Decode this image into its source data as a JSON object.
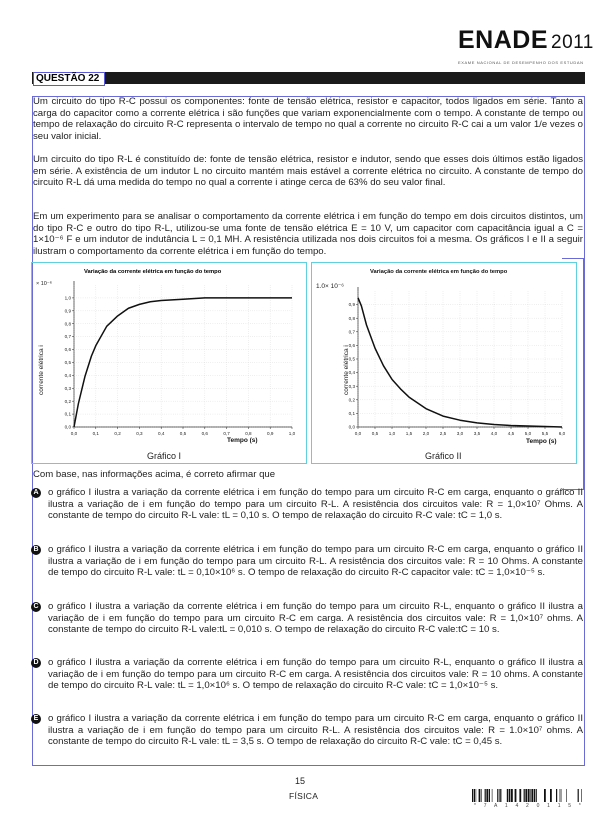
{
  "header": {
    "logo": "ENADE",
    "year": "2011",
    "tagline": "EXAME NACIONAL DE DESEMPENHO DOS ESTUDANTES"
  },
  "question": {
    "label": "QUESTÃO 22"
  },
  "paragraphs": [
    "Um circuito do tipo R-C possui os componentes: fonte de tensão elétrica, resistor e capacitor, todos ligados em série. Tanto a carga do capacitor como a corrente elétrica i são funções que variam exponencialmente com o tempo. A constante de tempo ou tempo de relaxação do circuito R-C representa o intervalo de tempo no qual a corrente no circuito R-C cai a um valor 1/e vezes o seu valor inicial.",
    "Um circuito do tipo R-L é constituído de: fonte de tensão elétrica, resistor e indutor, sendo que esses dois últimos estão ligados em série. A existência de um indutor L no circuito mantém mais estável a corrente elétrica no circuito. A constante de tempo do circuito R-L dá uma medida do tempo no qual a corrente i atinge cerca de 63% do seu valor final.",
    "Em um experimento para se analisar o comportamento da corrente elétrica i em função do tempo em dois circuitos distintos, um do tipo R-C e outro do tipo R-L, utilizou-se uma fonte de tensão elétrica E = 10 V, um capacitor com capacitância igual a C = 1×10⁻⁶ F e um indutor de indutância L = 0,1 MH. A resistência utilizada nos dois circuitos foi a mesma. Os gráficos I e II a seguir ilustram o comportamento da corrente elétrica i em função do tempo."
  ],
  "prompt": "Com base, nas informações acima, é correto afirmar que",
  "options": [
    {
      "letter": "A",
      "text": "o gráfico I ilustra a variação da corrente elétrica i em função do tempo para um circuito R-C em carga, enquanto o gráfico II ilustra a variação de i em função do tempo para um circuito R-L. A resistência dos circuitos vale: R = 1,0×10⁷ Ohms. A constante de tempo do circuito R-L vale: tL = 0,10 s. O tempo de relaxação do circuito R-C vale: tC = 1,0 s."
    },
    {
      "letter": "B",
      "text": "o gráfico I ilustra a variação da corrente elétrica i em função do tempo para um circuito R-C em carga, enquanto o gráfico II ilustra a variação de i em função do tempo para um circuito R-L. A resistência dos circuitos vale: R = 10 Ohms. A constante de tempo do circuito R-L vale: tL = 0,10×10⁶ s. O tempo de relaxação do circuito R-C capacitor vale: tC = 1,0×10⁻⁵ s."
    },
    {
      "letter": "C",
      "text": "o gráfico I ilustra a variação da corrente elétrica i em função do tempo para um circuito R-L, enquanto o gráfico II ilustra a variação de i em função do tempo para um circuito R-C em carga. A resistência dos circuitos vale: R = 1,0×10⁷ ohms. A constante de tempo do circuito R-L vale:tL = 0,010 s. O tempo de relaxação do circuito R-C vale:tC = 10 s."
    },
    {
      "letter": "D",
      "text": "o gráfico I ilustra a variação da corrente elétrica i em função do tempo para um circuito R-L, enquanto o gráfico II ilustra a variação de i em função do tempo para um circuito R-C em carga. A resistência dos circuitos vale: R = 10 ohms. A constante de tempo do circuito R-L vale: tL = 1,0×10⁶ s. O tempo de relaxação do circuito R-C vale: tC = 1,0×10⁻⁵ s."
    },
    {
      "letter": "E",
      "text": "o gráfico I ilustra a variação da corrente elétrica i em função do tempo para um circuito R-C em carga, enquanto o gráfico II ilustra a variação de i em função do tempo para um circuito R-L. A resistência dos circuitos vale: R = 1.0×10⁷ ohms. A constante de tempo do circuito R-L vale: tL = 3,5 s. O tempo de relaxação do circuito R-C vale: tC = 0,45 s."
    }
  ],
  "graphs": {
    "g1_title": "Variação da corrente elétrica em função do tempo",
    "g1_scale": "× 10⁻⁶",
    "g1_ylabel": "corrente elétrica i",
    "g1_xlabel": "Tempo (s)",
    "g1_caption": "Gráfico I",
    "g2_title": "Variação da corrente elétrica em função do tempo",
    "g2_scale": "1.0× 10⁻⁶",
    "g2_ylabel": "corrente elétrica i",
    "g2_xlabel": "Tempo (s)",
    "g2_caption": "Gráfico II"
  },
  "chart_data": [
    {
      "type": "line",
      "title": "Variação da corrente elétrica em função do tempo",
      "xlabel": "Tempo (s)",
      "ylabel": "corrente elétrica i",
      "xlim": [
        0,
        1.0
      ],
      "ylim": [
        0,
        1.1
      ],
      "xticks": [
        "0,0",
        "0,1",
        "0,2",
        "0,3",
        "0,4",
        "0,5",
        "0,6",
        "0,7",
        "0,8",
        "0,9",
        "1,0"
      ],
      "yticks": [
        "0,0",
        "0,1",
        "0,2",
        "0,3",
        "0,4",
        "0,5",
        "0,6",
        "0,7",
        "0,8",
        "0,9",
        "1,0"
      ],
      "x": [
        0,
        0.02,
        0.05,
        0.08,
        0.1,
        0.15,
        0.2,
        0.25,
        0.3,
        0.35,
        0.4,
        0.5,
        0.6,
        0.7,
        0.8,
        0.9,
        1.0
      ],
      "y": [
        0,
        0.18,
        0.39,
        0.55,
        0.63,
        0.78,
        0.86,
        0.92,
        0.95,
        0.97,
        0.98,
        0.99,
        1.0,
        1.0,
        1.0,
        1.0,
        1.0
      ]
    },
    {
      "type": "line",
      "title": "Variação da corrente elétrica em função do tempo",
      "xlabel": "Tempo (s)",
      "ylabel": "corrente elétrica i",
      "xlim": [
        0,
        6.0
      ],
      "ylim": [
        0,
        1.0
      ],
      "xticks": [
        "0,0",
        "0,5",
        "1,0",
        "1,5",
        "2,0",
        "2,5",
        "3,0",
        "3,5",
        "4,0",
        "4,5",
        "5,0",
        "5,5",
        "6,0"
      ],
      "yticks": [
        "0,0",
        "0,1",
        "0,2",
        "0,3",
        "0,4",
        "0,5",
        "0,6",
        "0,7",
        "0,8",
        "0,9"
      ],
      "x": [
        0,
        0.1,
        0.25,
        0.5,
        0.75,
        1.0,
        1.25,
        1.5,
        2.0,
        2.5,
        3.0,
        3.5,
        4.0,
        4.5,
        5.0,
        5.5,
        6.0
      ],
      "y": [
        0.95,
        0.89,
        0.75,
        0.58,
        0.45,
        0.35,
        0.28,
        0.22,
        0.135,
        0.08,
        0.05,
        0.03,
        0.018,
        0.011,
        0.007,
        0.004,
        0.0
      ]
    }
  ],
  "footer": {
    "page": "15",
    "subject": "FÍSICA",
    "barcode_number": "* 7 A 1 4 2 0 1 1 5 *"
  }
}
